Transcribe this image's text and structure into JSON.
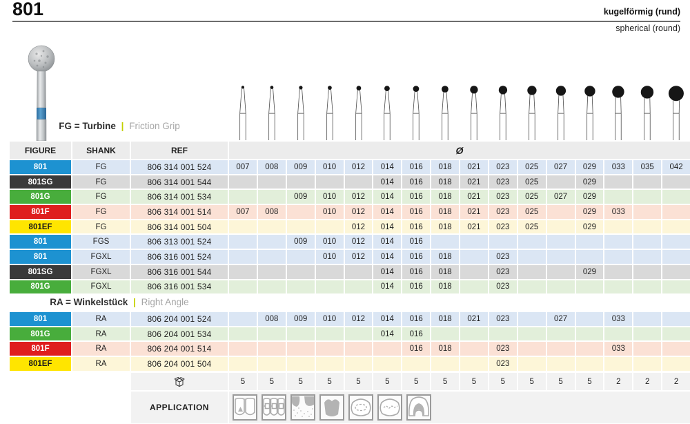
{
  "header": {
    "code": "801",
    "name_de": "kugelförmig (rund)",
    "name_en": "spherical (round)"
  },
  "sections": {
    "fg": {
      "bold": "FG = Turbine",
      "separator": "|",
      "light": "Friction Grip"
    },
    "ra": {
      "bold": "RA = Winkelstück",
      "separator": "|",
      "light": "Right Angle"
    }
  },
  "table": {
    "col_headers": {
      "figure": "FIGURE",
      "shank": "SHANK",
      "ref": "REF",
      "diameter": "Ø"
    },
    "sizes": [
      "007",
      "008",
      "009",
      "010",
      "012",
      "014",
      "016",
      "018",
      "021",
      "023",
      "025",
      "027",
      "029",
      "033",
      "035",
      "042"
    ],
    "fg_rows": [
      {
        "figure": "801",
        "variant": "std",
        "shank": "FG",
        "ref": "806 314 001 524",
        "sizes": [
          "007",
          "008",
          "009",
          "010",
          "012",
          "014",
          "016",
          "018",
          "021",
          "023",
          "025",
          "027",
          "029",
          "033",
          "035",
          "042"
        ]
      },
      {
        "figure": "801SG",
        "variant": "sg",
        "shank": "FG",
        "ref": "806 314 001 544",
        "sizes": [
          "014",
          "016",
          "018",
          "021",
          "023",
          "025",
          "029"
        ]
      },
      {
        "figure": "801G",
        "variant": "g",
        "shank": "FG",
        "ref": "806 314 001 534",
        "sizes": [
          "009",
          "010",
          "012",
          "014",
          "016",
          "018",
          "021",
          "023",
          "025",
          "027",
          "029"
        ]
      },
      {
        "figure": "801F",
        "variant": "f",
        "shank": "FG",
        "ref": "806 314 001 514",
        "sizes": [
          "007",
          "008",
          "010",
          "012",
          "014",
          "016",
          "018",
          "021",
          "023",
          "025",
          "029",
          "033"
        ]
      },
      {
        "figure": "801EF",
        "variant": "ef",
        "shank": "FG",
        "ref": "806 314 001 504",
        "sizes": [
          "012",
          "014",
          "016",
          "018",
          "021",
          "023",
          "025",
          "029"
        ]
      },
      {
        "figure": "801",
        "variant": "std",
        "shank": "FGS",
        "ref": "806 313 001 524",
        "sizes": [
          "009",
          "010",
          "012",
          "014",
          "016"
        ]
      },
      {
        "figure": "801",
        "variant": "std",
        "shank": "FGXL",
        "ref": "806 316 001 524",
        "sizes": [
          "010",
          "012",
          "014",
          "016",
          "018",
          "023"
        ]
      },
      {
        "figure": "801SG",
        "variant": "sg",
        "shank": "FGXL",
        "ref": "806 316 001 544",
        "sizes": [
          "014",
          "016",
          "018",
          "023",
          "029"
        ]
      },
      {
        "figure": "801G",
        "variant": "g",
        "shank": "FGXL",
        "ref": "806 316 001 534",
        "sizes": [
          "014",
          "016",
          "018",
          "023"
        ]
      }
    ],
    "ra_rows": [
      {
        "figure": "801",
        "variant": "std",
        "shank": "RA",
        "ref": "806 204 001 524",
        "sizes": [
          "008",
          "009",
          "010",
          "012",
          "014",
          "016",
          "018",
          "021",
          "023",
          "027",
          "033"
        ]
      },
      {
        "figure": "801G",
        "variant": "g",
        "shank": "RA",
        "ref": "806 204 001 534",
        "sizes": [
          "014",
          "016"
        ]
      },
      {
        "figure": "801F",
        "variant": "f",
        "shank": "RA",
        "ref": "806 204 001 514",
        "sizes": [
          "016",
          "018",
          "023",
          "033"
        ]
      },
      {
        "figure": "801EF",
        "variant": "ef",
        "shank": "RA",
        "ref": "806 204 001 504",
        "sizes": [
          "023"
        ]
      }
    ]
  },
  "packaging": {
    "icon": "package-box-icon",
    "quantities": [
      "5",
      "5",
      "5",
      "5",
      "5",
      "5",
      "5",
      "5",
      "5",
      "5",
      "5",
      "5",
      "5",
      "2",
      "2",
      "2"
    ]
  },
  "application": {
    "label": "APPLICATION",
    "icons": [
      "anterior-teeth-icon",
      "orthodontic-brackets-icon",
      "root-gingiva-icon",
      "molar-silhouette-icon",
      "occlusal-surface-icon",
      "occlusal-fissure-icon",
      "crown-section-icon"
    ]
  },
  "colors": {
    "accent_lime": "#c3d000",
    "header_bg": "#ececec",
    "footer_bg": "#f2f2f2",
    "variants": {
      "std": {
        "badge": "#1d92d1",
        "tint": "#dbe6f4",
        "text": "#ffffff"
      },
      "sg": {
        "badge": "#3a3a3a",
        "tint": "#d9d9d9",
        "text": "#ffffff"
      },
      "g": {
        "badge": "#48ad3c",
        "tint": "#e2efda",
        "text": "#ffffff"
      },
      "f": {
        "badge": "#df1e1e",
        "tint": "#fbe1d5",
        "text": "#ffffff"
      },
      "ef": {
        "badge": "#ffe500",
        "tint": "#fdf6d8",
        "text": "#1a1a1a"
      }
    }
  }
}
